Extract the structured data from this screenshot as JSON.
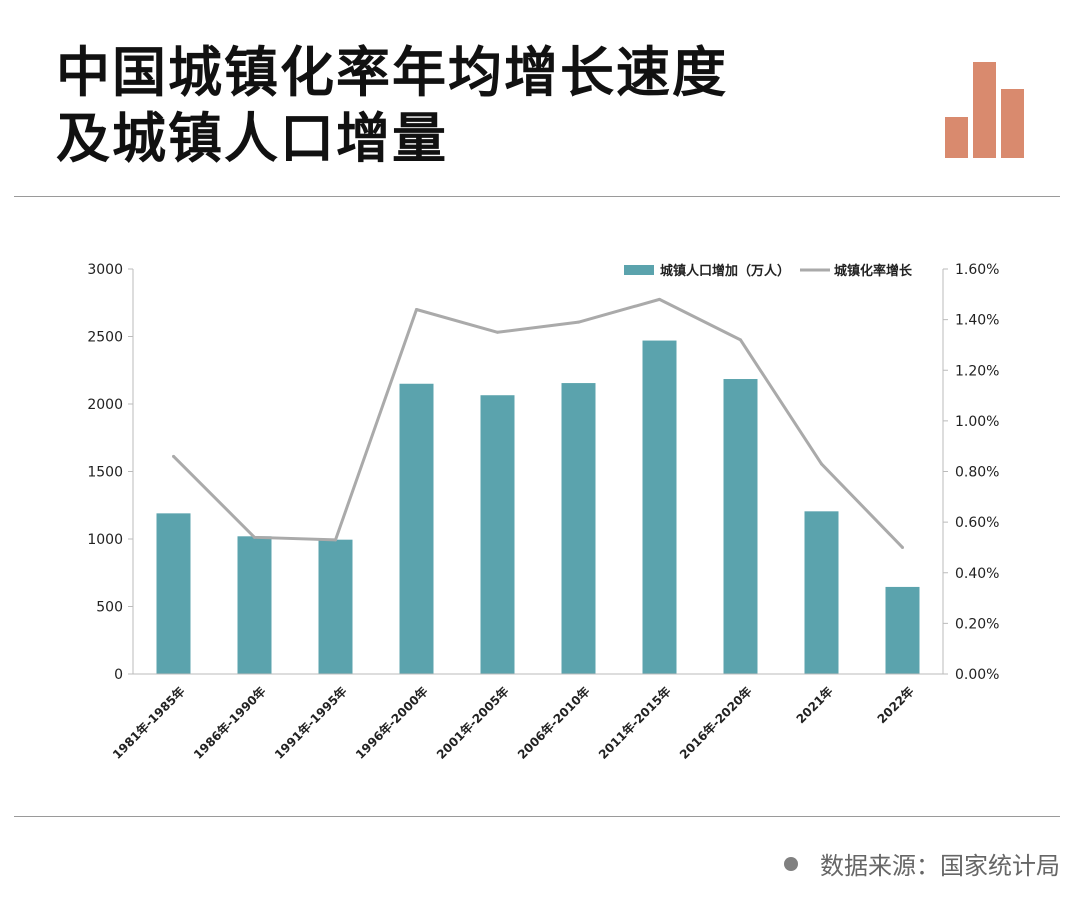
{
  "header": {
    "title_line1": "中国城镇化率年均增长速度",
    "title_line2": "及城镇人口增量"
  },
  "footer": {
    "source": "数据来源：国家统计局"
  },
  "colors": {
    "bar": "#5ba3ad",
    "line": "#aaaaaa",
    "logo": "#d98a6e",
    "rule": "#9a9a9a"
  },
  "chart_data": {
    "type": "bar",
    "categories": [
      "1981年-1985年",
      "1986年-1990年",
      "1991年-1995年",
      "1996年-2000年",
      "2001年-2005年",
      "2006年-2010年",
      "2011年-2015年",
      "2016年-2020年",
      "2021年",
      "2022年"
    ],
    "series": [
      {
        "name": "城镇人口增加（万人）",
        "type": "bar",
        "axis": "left",
        "values": [
          1190,
          1020,
          995,
          2150,
          2065,
          2155,
          2470,
          2185,
          1205,
          645
        ]
      },
      {
        "name": "城镇化率增长",
        "type": "line",
        "axis": "right",
        "values": [
          0.86,
          0.54,
          0.53,
          1.44,
          1.35,
          1.39,
          1.48,
          1.32,
          0.83,
          0.5
        ]
      }
    ],
    "y_left": {
      "min": 0,
      "max": 3000,
      "ticks": [
        0,
        500,
        1000,
        1500,
        2000,
        2500,
        3000
      ],
      "tick_labels": [
        "0",
        "500",
        "1000",
        "1500",
        "2000",
        "2500",
        "3000"
      ]
    },
    "y_right": {
      "min": 0,
      "max": 1.6,
      "ticks": [
        0,
        0.2,
        0.4,
        0.6,
        0.8,
        1.0,
        1.2,
        1.4,
        1.6
      ],
      "tick_labels": [
        "0.00%",
        "0.20%",
        "0.40%",
        "0.60%",
        "0.80%",
        "1.00%",
        "1.20%",
        "1.40%",
        "1.60%"
      ]
    },
    "legend_position": "top-right",
    "grid": false
  }
}
